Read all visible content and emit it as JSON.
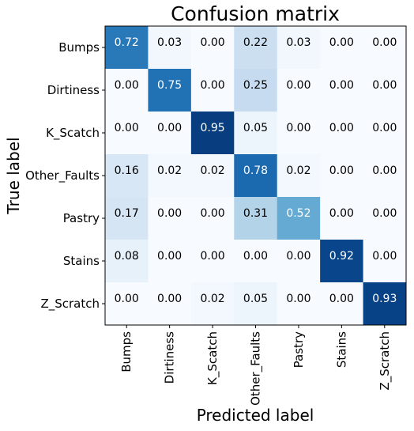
{
  "chart_data": {
    "type": "heatmap",
    "title": "Confusion matrix",
    "xlabel": "Predicted label",
    "ylabel": "True label",
    "row_labels": [
      "Bumps",
      "Dirtiness",
      "K_Scatch",
      "Other_Faults",
      "Pastry",
      "Stains",
      "Z_Scratch"
    ],
    "col_labels": [
      "Bumps",
      "Dirtiness",
      "K_Scatch",
      "Other_Faults",
      "Pastry",
      "Stains",
      "Z_Scratch"
    ],
    "values": [
      [
        0.72,
        0.03,
        0.0,
        0.22,
        0.03,
        0.0,
        0.0
      ],
      [
        0.0,
        0.75,
        0.0,
        0.25,
        0.0,
        0.0,
        0.0
      ],
      [
        0.0,
        0.0,
        0.95,
        0.05,
        0.0,
        0.0,
        0.0
      ],
      [
        0.16,
        0.02,
        0.02,
        0.78,
        0.02,
        0.0,
        0.0
      ],
      [
        0.17,
        0.0,
        0.0,
        0.31,
        0.52,
        0.0,
        0.0
      ],
      [
        0.08,
        0.0,
        0.0,
        0.0,
        0.0,
        0.92,
        0.0
      ],
      [
        0.0,
        0.0,
        0.02,
        0.05,
        0.0,
        0.0,
        0.93
      ]
    ],
    "value_format": "0.00",
    "colormap": "Blues",
    "color_range": [
      0,
      1
    ],
    "grid": false,
    "colors": {
      "low": "#f7fbff",
      "high": "#08306b",
      "text_dark": "#000000",
      "text_light": "#ffffff"
    }
  }
}
